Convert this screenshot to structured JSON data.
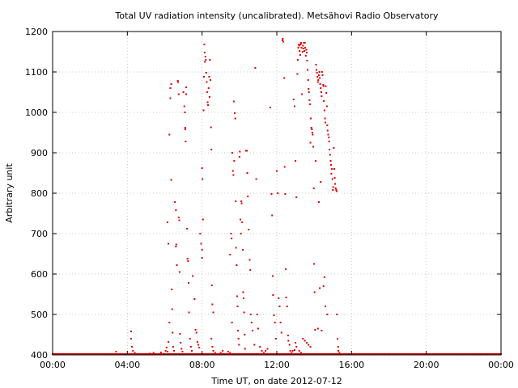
{
  "chart_data": {
    "type": "scatter",
    "title": "Total UV radiation intensity (uncalibrated). Metsähovi Radio Observatory",
    "xlabel": "Time UT, on date 2012-07-12",
    "ylabel": "Arbitrary unit",
    "x_unit": "hours",
    "xlim": [
      0,
      24
    ],
    "ylim": [
      400,
      1200
    ],
    "x_ticks": [
      {
        "value": 0,
        "label": "00:00"
      },
      {
        "value": 4,
        "label": "04:00"
      },
      {
        "value": 8,
        "label": "08:00"
      },
      {
        "value": 12,
        "label": "12:00"
      },
      {
        "value": 16,
        "label": "16:00"
      },
      {
        "value": 20,
        "label": "20:00"
      },
      {
        "value": 24,
        "label": "00:00"
      }
    ],
    "y_ticks": [
      {
        "value": 400,
        "label": "400"
      },
      {
        "value": 500,
        "label": "500"
      },
      {
        "value": 600,
        "label": "600"
      },
      {
        "value": 700,
        "label": "700"
      },
      {
        "value": 800,
        "label": "800"
      },
      {
        "value": 900,
        "label": "900"
      },
      {
        "value": 1000,
        "label": "1000"
      },
      {
        "value": 1100,
        "label": "1100"
      },
      {
        "value": 1200,
        "label": "1200"
      }
    ],
    "grid": true,
    "marker_color": "#dd0000",
    "series": [
      {
        "baseline": {
          "value": 400,
          "from": 0,
          "to": 24,
          "step": 0.08
        },
        "points": [
          [
            3.4,
            402
          ],
          [
            3.4,
            408
          ],
          [
            4.2,
            458
          ],
          [
            4.2,
            440
          ],
          [
            4.25,
            420
          ],
          [
            4.3,
            410
          ],
          [
            4.4,
            405
          ],
          [
            4.5,
            402
          ],
          [
            5.2,
            403
          ],
          [
            5.4,
            405
          ],
          [
            5.7,
            402
          ],
          [
            5.8,
            406
          ],
          [
            6.0,
            402
          ],
          [
            6.05,
            410
          ],
          [
            6.1,
            418
          ],
          [
            6.15,
            408
          ],
          [
            6.15,
            728
          ],
          [
            6.2,
            675
          ],
          [
            6.2,
            432
          ],
          [
            6.25,
            945
          ],
          [
            6.25,
            480
          ],
          [
            6.3,
            1035
          ],
          [
            6.3,
            1060
          ],
          [
            6.35,
            1070
          ],
          [
            6.35,
            833
          ],
          [
            6.38,
            562
          ],
          [
            6.4,
            513
          ],
          [
            6.42,
            455
          ],
          [
            6.45,
            420
          ],
          [
            6.5,
            410
          ],
          [
            6.55,
            778
          ],
          [
            6.6,
            758
          ],
          [
            6.6,
            668
          ],
          [
            6.62,
            673
          ],
          [
            6.65,
            622
          ],
          [
            6.7,
            1078
          ],
          [
            6.72,
            1075
          ],
          [
            6.75,
            1045
          ],
          [
            6.75,
            740
          ],
          [
            6.78,
            733
          ],
          [
            6.8,
            605
          ],
          [
            6.82,
            452
          ],
          [
            6.85,
            430
          ],
          [
            6.9,
            415
          ],
          [
            6.95,
            408
          ],
          [
            7.0,
            1050
          ],
          [
            7.05,
            1015
          ],
          [
            7.08,
            1000
          ],
          [
            7.1,
            962
          ],
          [
            7.1,
            958
          ],
          [
            7.12,
            928
          ],
          [
            7.15,
            1062
          ],
          [
            7.15,
            1045
          ],
          [
            7.2,
            712
          ],
          [
            7.22,
            638
          ],
          [
            7.25,
            632
          ],
          [
            7.28,
            578
          ],
          [
            7.3,
            505
          ],
          [
            7.35,
            440
          ],
          [
            7.4,
            420
          ],
          [
            7.45,
            410
          ],
          [
            7.5,
            595
          ],
          [
            7.6,
            538
          ],
          [
            7.65,
            462
          ],
          [
            7.7,
            455
          ],
          [
            7.75,
            432
          ],
          [
            7.8,
            425
          ],
          [
            7.85,
            418
          ],
          [
            7.9,
            700
          ],
          [
            7.95,
            675
          ],
          [
            8.0,
            640
          ],
          [
            8.0,
            660
          ],
          [
            8.0,
            862
          ],
          [
            8.02,
            835
          ],
          [
            8.05,
            735
          ],
          [
            8.08,
            1005
          ],
          [
            8.1,
            1088
          ],
          [
            8.12,
            1168
          ],
          [
            8.14,
            1148
          ],
          [
            8.15,
            1125
          ],
          [
            8.18,
            1138
          ],
          [
            8.2,
            1130
          ],
          [
            8.22,
            1098
          ],
          [
            8.25,
            1075
          ],
          [
            8.28,
            1050
          ],
          [
            8.3,
            1025
          ],
          [
            8.32,
            1018
          ],
          [
            8.35,
            1060
          ],
          [
            8.38,
            1088
          ],
          [
            8.4,
            1038
          ],
          [
            8.42,
            1130
          ],
          [
            8.45,
            1080
          ],
          [
            8.48,
            963
          ],
          [
            8.5,
            908
          ],
          [
            8.52,
            572
          ],
          [
            8.55,
            525
          ],
          [
            8.6,
            505
          ],
          [
            8.5,
            440
          ],
          [
            8.55,
            420
          ],
          [
            8.6,
            410
          ],
          [
            8.7,
            405
          ],
          [
            8.8,
            402
          ],
          [
            9.0,
            405
          ],
          [
            9.1,
            410
          ],
          [
            9.2,
            402
          ],
          [
            9.4,
            408
          ],
          [
            9.5,
            405
          ],
          [
            9.5,
            648
          ],
          [
            9.55,
            700
          ],
          [
            9.58,
            688
          ],
          [
            9.6,
            480
          ],
          [
            9.62,
            900
          ],
          [
            9.65,
            855
          ],
          [
            9.68,
            845
          ],
          [
            9.7,
            1027
          ],
          [
            9.72,
            880
          ],
          [
            9.75,
            998
          ],
          [
            9.78,
            985
          ],
          [
            9.8,
            780
          ],
          [
            9.82,
            665
          ],
          [
            9.85,
            622
          ],
          [
            9.88,
            545
          ],
          [
            9.9,
            520
          ],
          [
            9.92,
            460
          ],
          [
            9.95,
            440
          ],
          [
            9.98,
            425
          ],
          [
            10.0,
            890
          ],
          [
            10.02,
            903
          ],
          [
            10.05,
            735
          ],
          [
            10.08,
            700
          ],
          [
            10.1,
            780
          ],
          [
            10.12,
            775
          ],
          [
            10.15,
            728
          ],
          [
            10.18,
            660
          ],
          [
            10.2,
            555
          ],
          [
            10.22,
            540
          ],
          [
            10.25,
            505
          ],
          [
            10.28,
            450
          ],
          [
            10.3,
            415
          ],
          [
            10.35,
            905
          ],
          [
            10.4,
            905
          ],
          [
            10.42,
            850
          ],
          [
            10.45,
            792
          ],
          [
            10.5,
            710
          ],
          [
            10.55,
            635
          ],
          [
            10.58,
            610
          ],
          [
            10.6,
            500
          ],
          [
            10.65,
            480
          ],
          [
            10.7,
            460
          ],
          [
            10.8,
            425
          ],
          [
            10.85,
            1110
          ],
          [
            10.9,
            835
          ],
          [
            10.95,
            500
          ],
          [
            11.0,
            465
          ],
          [
            11.1,
            420
          ],
          [
            11.2,
            410
          ],
          [
            11.3,
            405
          ],
          [
            11.4,
            410
          ],
          [
            11.5,
            415
          ],
          [
            11.65,
            1012
          ],
          [
            11.72,
            798
          ],
          [
            11.75,
            745
          ],
          [
            11.78,
            595
          ],
          [
            11.8,
            548
          ],
          [
            11.85,
            498
          ],
          [
            11.9,
            480
          ],
          [
            11.95,
            440
          ],
          [
            12.0,
            855
          ],
          [
            12.05,
            800
          ],
          [
            12.1,
            540
          ],
          [
            12.15,
            520
          ],
          [
            12.2,
            480
          ],
          [
            12.25,
            455
          ],
          [
            12.3,
            1178
          ],
          [
            12.32,
            1182
          ],
          [
            12.35,
            1175
          ],
          [
            12.4,
            1085
          ],
          [
            12.42,
            865
          ],
          [
            12.45,
            798
          ],
          [
            12.48,
            612
          ],
          [
            12.5,
            542
          ],
          [
            12.55,
            520
          ],
          [
            12.6,
            448
          ],
          [
            12.62,
            435
          ],
          [
            12.68,
            425
          ],
          [
            12.72,
            410
          ],
          [
            12.8,
            405
          ],
          [
            12.9,
            1032
          ],
          [
            12.95,
            1015
          ],
          [
            13.0,
            880
          ],
          [
            13.05,
            790
          ],
          [
            13.1,
            1095
          ],
          [
            13.12,
            1130
          ],
          [
            13.15,
            1160
          ],
          [
            13.18,
            1168
          ],
          [
            13.2,
            1165
          ],
          [
            13.22,
            1152
          ],
          [
            13.25,
            1142
          ],
          [
            13.28,
            1168
          ],
          [
            13.3,
            1172
          ],
          [
            13.32,
            1160
          ],
          [
            13.35,
            1045
          ],
          [
            13.38,
            1150
          ],
          [
            13.4,
            1165
          ],
          [
            13.42,
            1158
          ],
          [
            13.45,
            1172
          ],
          [
            13.48,
            1152
          ],
          [
            13.5,
            1172
          ],
          [
            13.52,
            1160
          ],
          [
            13.55,
            1140
          ],
          [
            13.58,
            1155
          ],
          [
            13.6,
            1148
          ],
          [
            13.62,
            1128
          ],
          [
            13.65,
            1105
          ],
          [
            13.68,
            1080
          ],
          [
            13.7,
            1058
          ],
          [
            13.72,
            1050
          ],
          [
            13.75,
            1030
          ],
          [
            13.78,
            1020
          ],
          [
            13.8,
            925
          ],
          [
            13.82,
            985
          ],
          [
            13.85,
            962
          ],
          [
            13.88,
            958
          ],
          [
            13.9,
            950
          ],
          [
            13.92,
            945
          ],
          [
            13.95,
            915
          ],
          [
            13.98,
            812
          ],
          [
            14.0,
            625
          ],
          [
            14.02,
            555
          ],
          [
            14.05,
            462
          ],
          [
            14.08,
            880
          ],
          [
            14.1,
            1118
          ],
          [
            14.12,
            1105
          ],
          [
            14.15,
            1098
          ],
          [
            14.18,
            1088
          ],
          [
            14.2,
            1075
          ],
          [
            14.22,
            1080
          ],
          [
            14.25,
            1092
          ],
          [
            14.28,
            1100
          ],
          [
            14.3,
            1085
          ],
          [
            14.32,
            1070
          ],
          [
            14.35,
            1060
          ],
          [
            14.38,
            1050
          ],
          [
            14.4,
            1040
          ],
          [
            14.42,
            1100
          ],
          [
            14.45,
            1092
          ],
          [
            14.48,
            1068
          ],
          [
            14.5,
            1065
          ],
          [
            14.52,
            1028
          ],
          [
            14.55,
            1005
          ],
          [
            14.58,
            985
          ],
          [
            14.6,
            975
          ],
          [
            14.62,
            1065
          ],
          [
            14.65,
            1048
          ],
          [
            14.68,
            1015
          ],
          [
            14.7,
            968
          ],
          [
            14.72,
            955
          ],
          [
            14.75,
            945
          ],
          [
            14.78,
            938
          ],
          [
            14.8,
            928
          ],
          [
            14.82,
            908
          ],
          [
            14.85,
            895
          ],
          [
            14.88,
            880
          ],
          [
            14.9,
            870
          ],
          [
            14.92,
            848
          ],
          [
            14.95,
            860
          ],
          [
            14.98,
            835
          ],
          [
            15.0,
            808
          ],
          [
            15.02,
            815
          ],
          [
            15.05,
            912
          ],
          [
            15.08,
            860
          ],
          [
            15.1,
            838
          ],
          [
            15.12,
            823
          ],
          [
            15.15,
            812
          ],
          [
            15.18,
            808
          ],
          [
            15.2,
            805
          ],
          [
            15.22,
            500
          ],
          [
            15.25,
            440
          ],
          [
            15.28,
            420
          ],
          [
            15.3,
            410
          ],
          [
            15.35,
            405
          ],
          [
            15.4,
            402
          ],
          [
            14.2,
            465
          ],
          [
            14.3,
            565
          ],
          [
            14.4,
            460
          ],
          [
            14.5,
            570
          ],
          [
            14.6,
            520
          ],
          [
            14.7,
            500
          ],
          [
            14.25,
            778
          ],
          [
            14.35,
            828
          ],
          [
            14.55,
            592
          ],
          [
            13.0,
            430
          ],
          [
            13.05,
            420
          ],
          [
            13.2,
            410
          ],
          [
            13.3,
            405
          ],
          [
            13.4,
            440
          ],
          [
            13.5,
            435
          ],
          [
            13.6,
            430
          ],
          [
            13.7,
            425
          ],
          [
            13.8,
            420
          ],
          [
            12.85,
            410
          ],
          [
            12.95,
            412
          ]
        ]
      }
    ]
  }
}
